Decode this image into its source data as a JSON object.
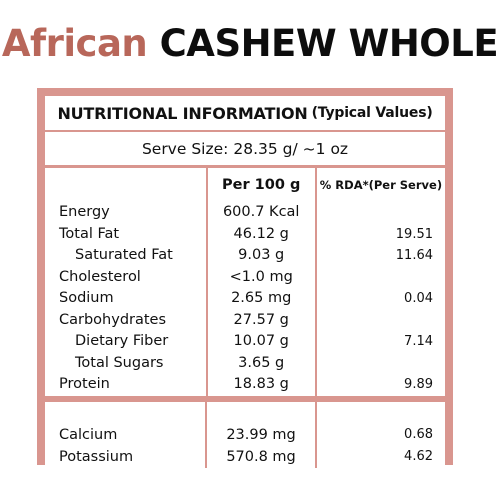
{
  "header": {
    "brand": "African",
    "product": "CASHEW WHOLE",
    "brand_color": "#b8675a"
  },
  "panel": {
    "accent_color": "#d9968f",
    "heading_main": "NUTRITIONAL INFORMATION",
    "heading_sub": "(Typical Values)",
    "serve_label": "Serve Size:",
    "serve_value": "28.35 g/ ~1 oz"
  },
  "table": {
    "columns": [
      "",
      "Per 100 g",
      "% RDA*(Per Serve)"
    ],
    "rows": [
      {
        "name": "Energy",
        "per100": "600.7 Kcal",
        "rda": ""
      },
      {
        "name": "Total Fat",
        "per100": "46.12 g",
        "rda": "19.51"
      },
      {
        "name": "Saturated Fat",
        "per100": "9.03 g",
        "rda": "11.64"
      },
      {
        "name": "Cholesterol",
        "per100": "<1.0 mg",
        "rda": ""
      },
      {
        "name": "Sodium",
        "per100": "2.65 mg",
        "rda": "0.04"
      },
      {
        "name": "Carbohydrates",
        "per100": "27.57 g",
        "rda": ""
      },
      {
        "name": "Dietary Fiber",
        "per100": "10.07 g",
        "rda": "7.14"
      },
      {
        "name": "Total Sugars",
        "per100": "3.65 g",
        "rda": ""
      },
      {
        "name": "Protein",
        "per100": "18.83 g",
        "rda": "9.89"
      }
    ],
    "minerals": [
      {
        "name": "Calcium",
        "per100": "23.99 mg",
        "rda": "0.68"
      },
      {
        "name": "Potassium",
        "per100": "570.8 mg",
        "rda": "4.62"
      }
    ]
  }
}
